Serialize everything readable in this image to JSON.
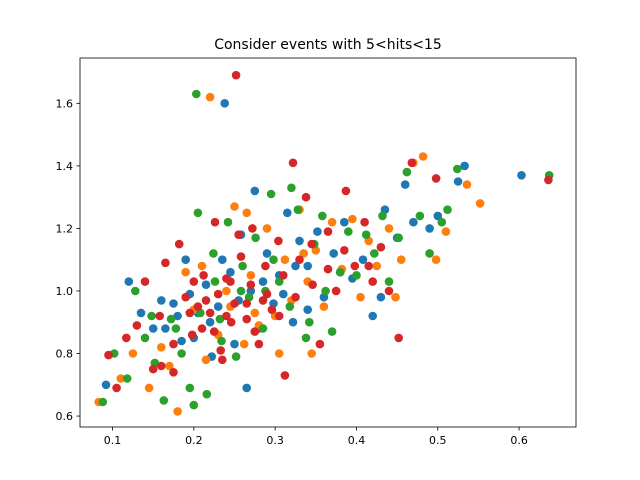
{
  "chart_data": {
    "type": "scatter",
    "title": "Consider events with 5<hits<15",
    "xlabel": "",
    "ylabel": "",
    "xlim": [
      0.06,
      0.67
    ],
    "ylim": [
      0.565,
      1.745
    ],
    "xticks": [
      0.1,
      0.2,
      0.3,
      0.4,
      0.5,
      0.6
    ],
    "xtick_labels": [
      "0.1",
      "0.2",
      "0.3",
      "0.4",
      "0.5",
      "0.6"
    ],
    "yticks": [
      0.6,
      0.8,
      1.0,
      1.2,
      1.4,
      1.6
    ],
    "ytick_labels": [
      "0.6",
      "0.8",
      "1.0",
      "1.2",
      "1.4",
      "1.6"
    ],
    "grid": false,
    "legend": "none",
    "colors": [
      "#1f77b4",
      "#ff7f0e",
      "#2ca02c",
      "#d62728"
    ],
    "series": [
      {
        "color": "#1f77b4",
        "points": [
          [
            0.092,
            0.7
          ],
          [
            0.12,
            1.03
          ],
          [
            0.135,
            0.93
          ],
          [
            0.15,
            0.88
          ],
          [
            0.16,
            0.97
          ],
          [
            0.175,
            0.96
          ],
          [
            0.185,
            0.84
          ],
          [
            0.19,
            1.1
          ],
          [
            0.2,
            0.85
          ],
          [
            0.205,
            0.93
          ],
          [
            0.215,
            1.02
          ],
          [
            0.222,
            0.79
          ],
          [
            0.23,
            0.95
          ],
          [
            0.238,
            1.6
          ],
          [
            0.245,
            1.06
          ],
          [
            0.25,
            0.83
          ],
          [
            0.258,
            1.18
          ],
          [
            0.265,
            0.69
          ],
          [
            0.275,
            1.32
          ],
          [
            0.28,
            0.88
          ],
          [
            0.29,
            1.12
          ],
          [
            0.298,
            0.96
          ],
          [
            0.305,
            1.05
          ],
          [
            0.315,
            1.25
          ],
          [
            0.322,
            0.9
          ],
          [
            0.33,
            1.16
          ],
          [
            0.34,
            1.08
          ],
          [
            0.352,
            1.19
          ],
          [
            0.36,
            0.98
          ],
          [
            0.372,
            1.12
          ],
          [
            0.385,
            1.22
          ],
          [
            0.395,
            1.04
          ],
          [
            0.408,
            1.1
          ],
          [
            0.42,
            0.92
          ],
          [
            0.43,
            0.98
          ],
          [
            0.435,
            1.26
          ],
          [
            0.45,
            1.17
          ],
          [
            0.46,
            1.34
          ],
          [
            0.47,
            1.22
          ],
          [
            0.49,
            1.2
          ],
          [
            0.5,
            1.24
          ],
          [
            0.525,
            1.35
          ],
          [
            0.533,
            1.4
          ],
          [
            0.603,
            1.37
          ],
          [
            0.27,
            1.0
          ],
          [
            0.31,
            0.99
          ],
          [
            0.22,
            0.9
          ],
          [
            0.18,
            0.92
          ],
          [
            0.34,
            0.94
          ],
          [
            0.38,
            1.06
          ],
          [
            0.255,
            0.97
          ],
          [
            0.285,
            1.03
          ],
          [
            0.195,
            0.99
          ],
          [
            0.165,
            0.88
          ],
          [
            0.235,
            1.1
          ],
          [
            0.325,
            1.08
          ]
        ]
      },
      {
        "color": "#ff7f0e",
        "points": [
          [
            0.083,
            0.645
          ],
          [
            0.11,
            0.72
          ],
          [
            0.125,
            0.8
          ],
          [
            0.145,
            0.69
          ],
          [
            0.16,
            0.82
          ],
          [
            0.17,
            0.76
          ],
          [
            0.18,
            0.615
          ],
          [
            0.19,
            1.06
          ],
          [
            0.2,
            0.94
          ],
          [
            0.21,
            1.08
          ],
          [
            0.22,
            1.62
          ],
          [
            0.23,
            0.86
          ],
          [
            0.24,
            1.0
          ],
          [
            0.25,
            1.27
          ],
          [
            0.262,
            0.83
          ],
          [
            0.27,
            1.05
          ],
          [
            0.28,
            0.89
          ],
          [
            0.29,
            1.2
          ],
          [
            0.3,
            0.92
          ],
          [
            0.312,
            1.1
          ],
          [
            0.32,
            0.97
          ],
          [
            0.33,
            1.26
          ],
          [
            0.34,
            1.03
          ],
          [
            0.35,
            1.13
          ],
          [
            0.36,
            0.95
          ],
          [
            0.37,
            1.22
          ],
          [
            0.382,
            1.07
          ],
          [
            0.395,
            1.23
          ],
          [
            0.405,
            0.98
          ],
          [
            0.415,
            1.16
          ],
          [
            0.425,
            1.08
          ],
          [
            0.44,
            1.2
          ],
          [
            0.448,
            0.98
          ],
          [
            0.455,
            1.1
          ],
          [
            0.47,
            1.41
          ],
          [
            0.482,
            1.43
          ],
          [
            0.498,
            1.1
          ],
          [
            0.51,
            1.19
          ],
          [
            0.536,
            1.34
          ],
          [
            0.552,
            1.28
          ],
          [
            0.345,
            0.8
          ],
          [
            0.305,
            0.8
          ],
          [
            0.265,
            1.25
          ],
          [
            0.245,
            0.95
          ],
          [
            0.215,
            0.78
          ],
          [
            0.275,
            0.93
          ],
          [
            0.375,
            1.0
          ],
          [
            0.335,
            1.12
          ]
        ]
      },
      {
        "color": "#2ca02c",
        "points": [
          [
            0.088,
            0.645
          ],
          [
            0.102,
            0.8
          ],
          [
            0.118,
            0.72
          ],
          [
            0.128,
            1.0
          ],
          [
            0.14,
            0.85
          ],
          [
            0.152,
            0.77
          ],
          [
            0.163,
            0.65
          ],
          [
            0.172,
            0.91
          ],
          [
            0.185,
            0.8
          ],
          [
            0.195,
            0.69
          ],
          [
            0.203,
            1.63
          ],
          [
            0.208,
            0.93
          ],
          [
            0.216,
            0.67
          ],
          [
            0.226,
            1.03
          ],
          [
            0.234,
            0.84
          ],
          [
            0.242,
            1.22
          ],
          [
            0.252,
            0.79
          ],
          [
            0.26,
            1.08
          ],
          [
            0.268,
            0.98
          ],
          [
            0.276,
            1.17
          ],
          [
            0.285,
            0.88
          ],
          [
            0.295,
            1.31
          ],
          [
            0.305,
            1.03
          ],
          [
            0.32,
            1.33
          ],
          [
            0.328,
            1.26
          ],
          [
            0.338,
            0.85
          ],
          [
            0.348,
            1.15
          ],
          [
            0.358,
            1.24
          ],
          [
            0.37,
            0.87
          ],
          [
            0.38,
            1.06
          ],
          [
            0.39,
            1.19
          ],
          [
            0.4,
            1.05
          ],
          [
            0.412,
            1.18
          ],
          [
            0.422,
            1.12
          ],
          [
            0.432,
            1.24
          ],
          [
            0.44,
            1.03
          ],
          [
            0.452,
            1.17
          ],
          [
            0.462,
            1.38
          ],
          [
            0.478,
            1.24
          ],
          [
            0.49,
            1.12
          ],
          [
            0.505,
            1.22
          ],
          [
            0.512,
            1.26
          ],
          [
            0.524,
            1.39
          ],
          [
            0.637,
            1.37
          ],
          [
            0.2,
            0.635
          ],
          [
            0.205,
            1.25
          ],
          [
            0.232,
            0.91
          ],
          [
            0.258,
            1.0
          ],
          [
            0.288,
            1.0
          ],
          [
            0.318,
            0.95
          ],
          [
            0.362,
            1.0
          ],
          [
            0.178,
            0.88
          ],
          [
            0.148,
            0.92
          ],
          [
            0.224,
            1.12
          ],
          [
            0.298,
            1.1
          ],
          [
            0.342,
            0.9
          ]
        ]
      },
      {
        "color": "#d62728",
        "points": [
          [
            0.095,
            0.795
          ],
          [
            0.105,
            0.69
          ],
          [
            0.117,
            0.85
          ],
          [
            0.13,
            0.89
          ],
          [
            0.14,
            1.03
          ],
          [
            0.15,
            0.75
          ],
          [
            0.158,
            0.92
          ],
          [
            0.165,
            1.09
          ],
          [
            0.175,
            0.74
          ],
          [
            0.182,
            1.15
          ],
          [
            0.19,
            0.98
          ],
          [
            0.198,
            0.86
          ],
          [
            0.205,
            0.95
          ],
          [
            0.212,
            1.05
          ],
          [
            0.22,
            0.93
          ],
          [
            0.226,
            1.22
          ],
          [
            0.233,
            0.81
          ],
          [
            0.24,
            1.04
          ],
          [
            0.246,
            0.9
          ],
          [
            0.252,
            1.69
          ],
          [
            0.258,
            1.11
          ],
          [
            0.265,
            0.96
          ],
          [
            0.272,
            1.2
          ],
          [
            0.28,
            0.83
          ],
          [
            0.288,
            1.08
          ],
          [
            0.296,
            0.94
          ],
          [
            0.304,
            1.16
          ],
          [
            0.312,
            0.73
          ],
          [
            0.322,
            1.41
          ],
          [
            0.33,
            1.1
          ],
          [
            0.338,
            1.3
          ],
          [
            0.346,
            1.02
          ],
          [
            0.355,
            0.83
          ],
          [
            0.365,
            1.19
          ],
          [
            0.375,
            1.0
          ],
          [
            0.387,
            1.32
          ],
          [
            0.398,
            1.08
          ],
          [
            0.41,
            1.22
          ],
          [
            0.42,
            1.03
          ],
          [
            0.43,
            1.14
          ],
          [
            0.44,
            1.0
          ],
          [
            0.452,
            0.85
          ],
          [
            0.468,
            1.41
          ],
          [
            0.498,
            1.36
          ],
          [
            0.636,
            1.355
          ],
          [
            0.21,
            0.88
          ],
          [
            0.23,
            0.99
          ],
          [
            0.25,
            0.96
          ],
          [
            0.27,
            1.02
          ],
          [
            0.29,
            0.99
          ],
          [
            0.31,
            1.05
          ],
          [
            0.225,
            0.87
          ],
          [
            0.245,
            1.03
          ],
          [
            0.265,
            0.91
          ],
          [
            0.195,
            0.93
          ],
          [
            0.285,
            0.97
          ],
          [
            0.305,
            0.92
          ],
          [
            0.345,
            1.15
          ],
          [
            0.385,
            1.13
          ],
          [
            0.415,
            1.08
          ],
          [
            0.175,
            0.83
          ],
          [
            0.215,
            0.97
          ],
          [
            0.235,
            0.78
          ],
          [
            0.255,
            1.18
          ],
          [
            0.275,
            0.87
          ],
          [
            0.16,
            0.76
          ],
          [
            0.325,
            0.98
          ],
          [
            0.365,
            1.07
          ],
          [
            0.2,
            1.03
          ],
          [
            0.24,
            0.92
          ]
        ]
      }
    ]
  }
}
